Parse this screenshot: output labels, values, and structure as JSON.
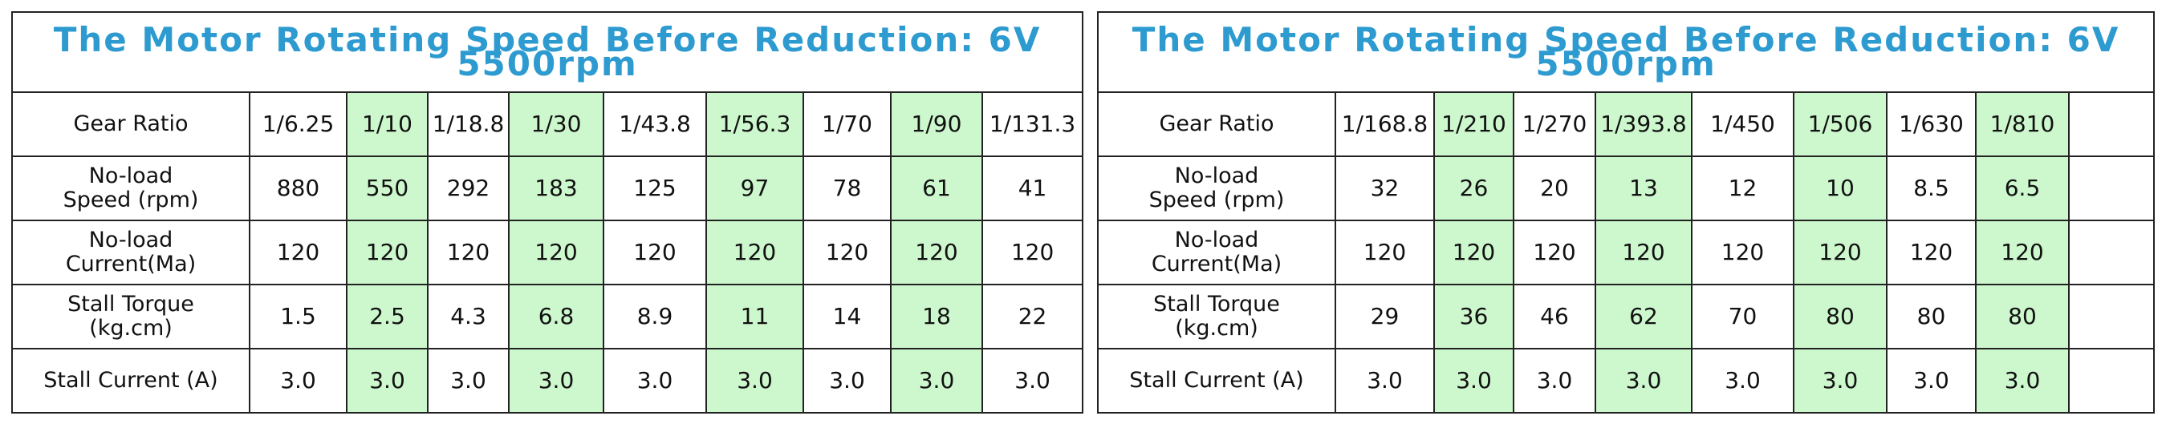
{
  "tables": [
    {
      "title": "The Motor Rotating Speed Before Reduction: 6V 5500rpm",
      "rows": [
        [
          "Gear Ratio",
          "1/6.25",
          "1/10",
          "1/18.8",
          "1/30",
          "1/43.8",
          "1/56.3",
          "1/70",
          "1/90",
          "1/131.3"
        ],
        [
          "No-load\nSpeed (rpm)",
          "880",
          "550",
          "292",
          "183",
          "125",
          "97",
          "78",
          "61",
          "41"
        ],
        [
          "No-load\nCurrent(Ma)",
          "120",
          "120",
          "120",
          "120",
          "120",
          "120",
          "120",
          "120",
          "120"
        ],
        [
          "Stall Torque\n(kg.cm)",
          "1.5",
          "2.5",
          "4.3",
          "6.8",
          "8.9",
          "11",
          "14",
          "18",
          "22"
        ],
        [
          "Stall Current (A)",
          "3.0",
          "3.0",
          "3.0",
          "3.0",
          "3.0",
          "3.0",
          "3.0",
          "3.0",
          "3.0"
        ]
      ]
    },
    {
      "title": "The Motor Rotating Speed Before Reduction: 6V 5500rpm",
      "rows": [
        [
          "Gear Ratio",
          "1/168.8",
          "1/210",
          "1/270",
          "1/393.8",
          "1/450",
          "1/506",
          "1/630",
          "1/810"
        ],
        [
          "No-load\nSpeed (rpm)",
          "32",
          "26",
          "20",
          "13",
          "12",
          "10",
          "8.5",
          "6.5"
        ],
        [
          "No-load\nCurrent(Ma)",
          "120",
          "120",
          "120",
          "120",
          "120",
          "120",
          "120",
          "120"
        ],
        [
          "Stall Torque\n(kg.cm)",
          "29",
          "36",
          "46",
          "62",
          "70",
          "80",
          "80",
          "80"
        ],
        [
          "Stall Current (A)",
          "3.0",
          "3.0",
          "3.0",
          "3.0",
          "3.0",
          "3.0",
          "3.0",
          "3.0"
        ]
      ]
    }
  ]
}
